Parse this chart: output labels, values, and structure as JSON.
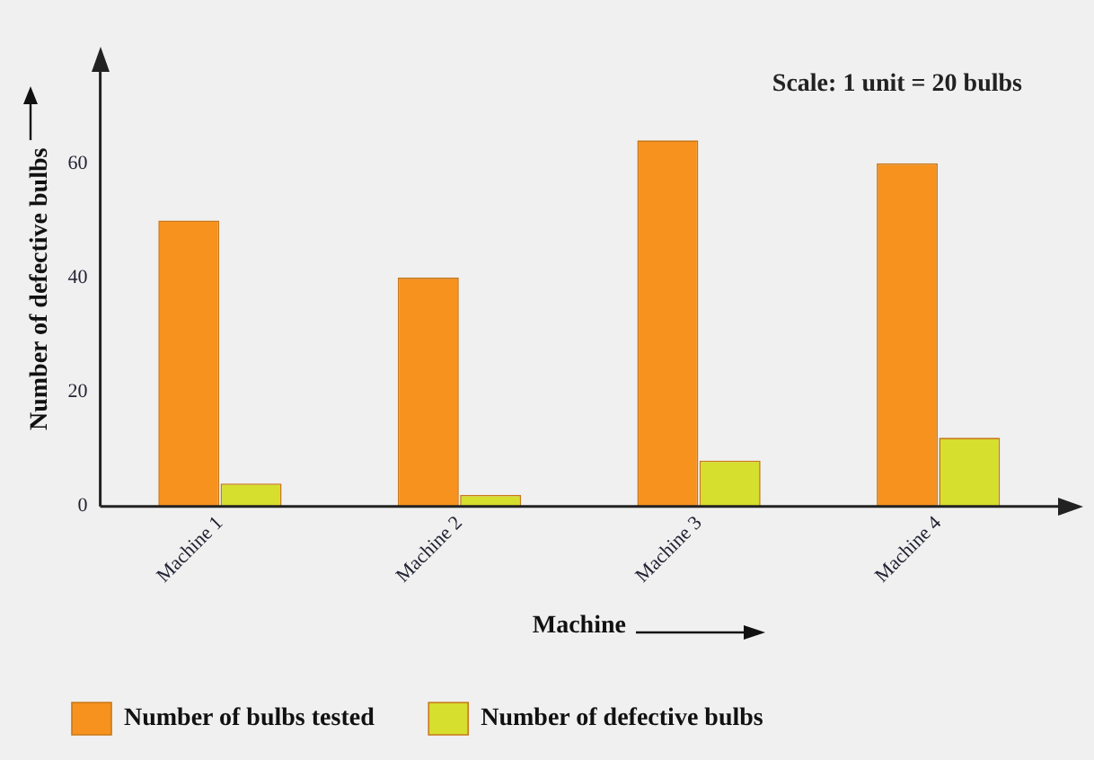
{
  "chart_data": {
    "type": "bar",
    "xlabel": "Machine",
    "ylabel": "Number of defective bulbs",
    "annotations": [
      "Scale: 1 unit = 20 bulbs"
    ],
    "categories": [
      "Machine 1",
      "Machine 2",
      "Machine 3",
      "Machine 4"
    ],
    "series": [
      {
        "name": "Number of bulbs tested",
        "color": "#f7921e",
        "values": [
          50,
          40,
          64,
          60
        ]
      },
      {
        "name": "Number of defective bulbs",
        "color": "#d6de2e",
        "values": [
          4,
          2,
          8,
          12
        ]
      }
    ],
    "ylim": [
      0,
      76
    ],
    "yticks": [
      0,
      20,
      40,
      60
    ],
    "grid": false,
    "legend": "bottom"
  }
}
